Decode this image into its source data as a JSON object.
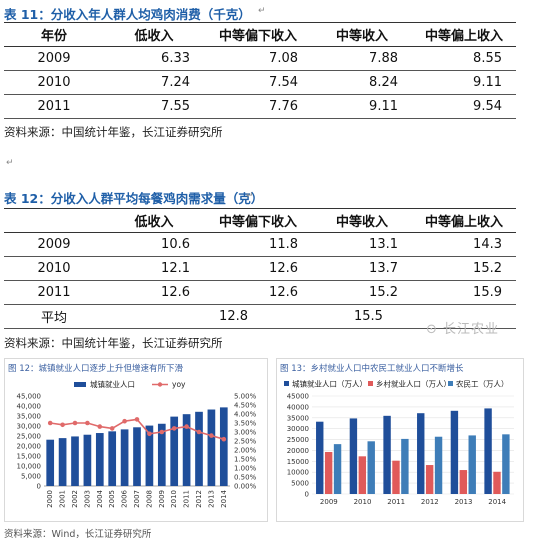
{
  "table11": {
    "title": "表 11：分收入年人群人均鸡肉消费（千克）",
    "headers": [
      "年份",
      "低收入",
      "中等偏下收入",
      "中等收入",
      "中等偏上收入"
    ],
    "rows": [
      [
        "2009",
        "6.33",
        "7.08",
        "7.88",
        "8.55"
      ],
      [
        "2010",
        "7.24",
        "7.54",
        "8.24",
        "9.11"
      ],
      [
        "2011",
        "7.55",
        "7.76",
        "9.11",
        "9.54"
      ]
    ],
    "source": "资料来源：中国统计年鉴，长江证券研究所"
  },
  "table12": {
    "title": "表 12：分收入人群平均每餐鸡肉需求量（克）",
    "headers": [
      "",
      "低收入",
      "中等偏下收入",
      "中等收入",
      "中等偏上收入"
    ],
    "rows": [
      [
        "2009",
        "10.6",
        "11.8",
        "13.1",
        "14.3"
      ],
      [
        "2010",
        "12.1",
        "12.6",
        "13.7",
        "15.2"
      ],
      [
        "2011",
        "12.6",
        "12.6",
        "15.2",
        "15.9"
      ]
    ],
    "avg_label": "平均",
    "avg_values": [
      "12.8",
      "15.5"
    ],
    "source": "资料来源：中国统计年鉴，长江证券研究所"
  },
  "watermark": "长江农业",
  "chart_data": [
    {
      "type": "bar",
      "title": "图 12：城镇就业人口逐步上升但增速有所下滑",
      "categories": [
        "2000",
        "2001",
        "2002",
        "2003",
        "2004",
        "2005",
        "2006",
        "2007",
        "2008",
        "2009",
        "2010",
        "2011",
        "2012",
        "2013",
        "2014"
      ],
      "series": [
        {
          "name": "城镇就业人口",
          "type": "bar",
          "axis": "left",
          "values": [
            23150,
            23940,
            24780,
            25640,
            26480,
            27330,
            28310,
            29350,
            30210,
            31120,
            34690,
            35910,
            37100,
            38240,
            39310
          ]
        },
        {
          "name": "yoy",
          "type": "line",
          "axis": "right",
          "values": [
            3.5,
            3.4,
            3.5,
            3.5,
            3.3,
            3.2,
            3.6,
            3.7,
            2.9,
            3.0,
            3.2,
            3.3,
            3.0,
            2.8,
            2.6
          ]
        }
      ],
      "ylim": [
        0,
        45000
      ],
      "yticks": [
        "0",
        "5,000",
        "10,000",
        "15,000",
        "20,000",
        "25,000",
        "30,000",
        "35,000",
        "40,000",
        "45,000"
      ],
      "y2lim": [
        0,
        5
      ],
      "y2ticks": [
        "0.00%",
        "0.50%",
        "1.00%",
        "1.50%",
        "2.00%",
        "2.50%",
        "3.00%",
        "3.50%",
        "4.00%",
        "4.50%",
        "5.00%"
      ],
      "colors": {
        "bar": "#1f4e9a",
        "line": "#e06a6a"
      },
      "legend": "top"
    },
    {
      "type": "bar",
      "title": "图 13：乡村就业人口中农民工就业人口不断增长",
      "categories": [
        "2009",
        "2010",
        "2011",
        "2012",
        "2013",
        "2014"
      ],
      "series": [
        {
          "name": "城镇就业人口（万人）",
          "values": [
            33200,
            34700,
            35900,
            37100,
            38200,
            39300
          ]
        },
        {
          "name": "乡村就业人口（万人）",
          "values": [
            19300,
            17300,
            15300,
            13300,
            11000,
            10200
          ]
        },
        {
          "name": "农民工（万人）",
          "values": [
            22900,
            24200,
            25300,
            26300,
            26900,
            27400
          ]
        }
      ],
      "ylim": [
        0,
        45000
      ],
      "yticks": [
        "0",
        "5000",
        "10000",
        "15000",
        "20000",
        "25000",
        "30000",
        "35000",
        "40000",
        "45000"
      ],
      "colors": [
        "#1f4e9a",
        "#e05a5a",
        "#3e7db8"
      ],
      "legend": "top"
    }
  ],
  "chart_source": "资料来源：Wind，长江证券研究所"
}
